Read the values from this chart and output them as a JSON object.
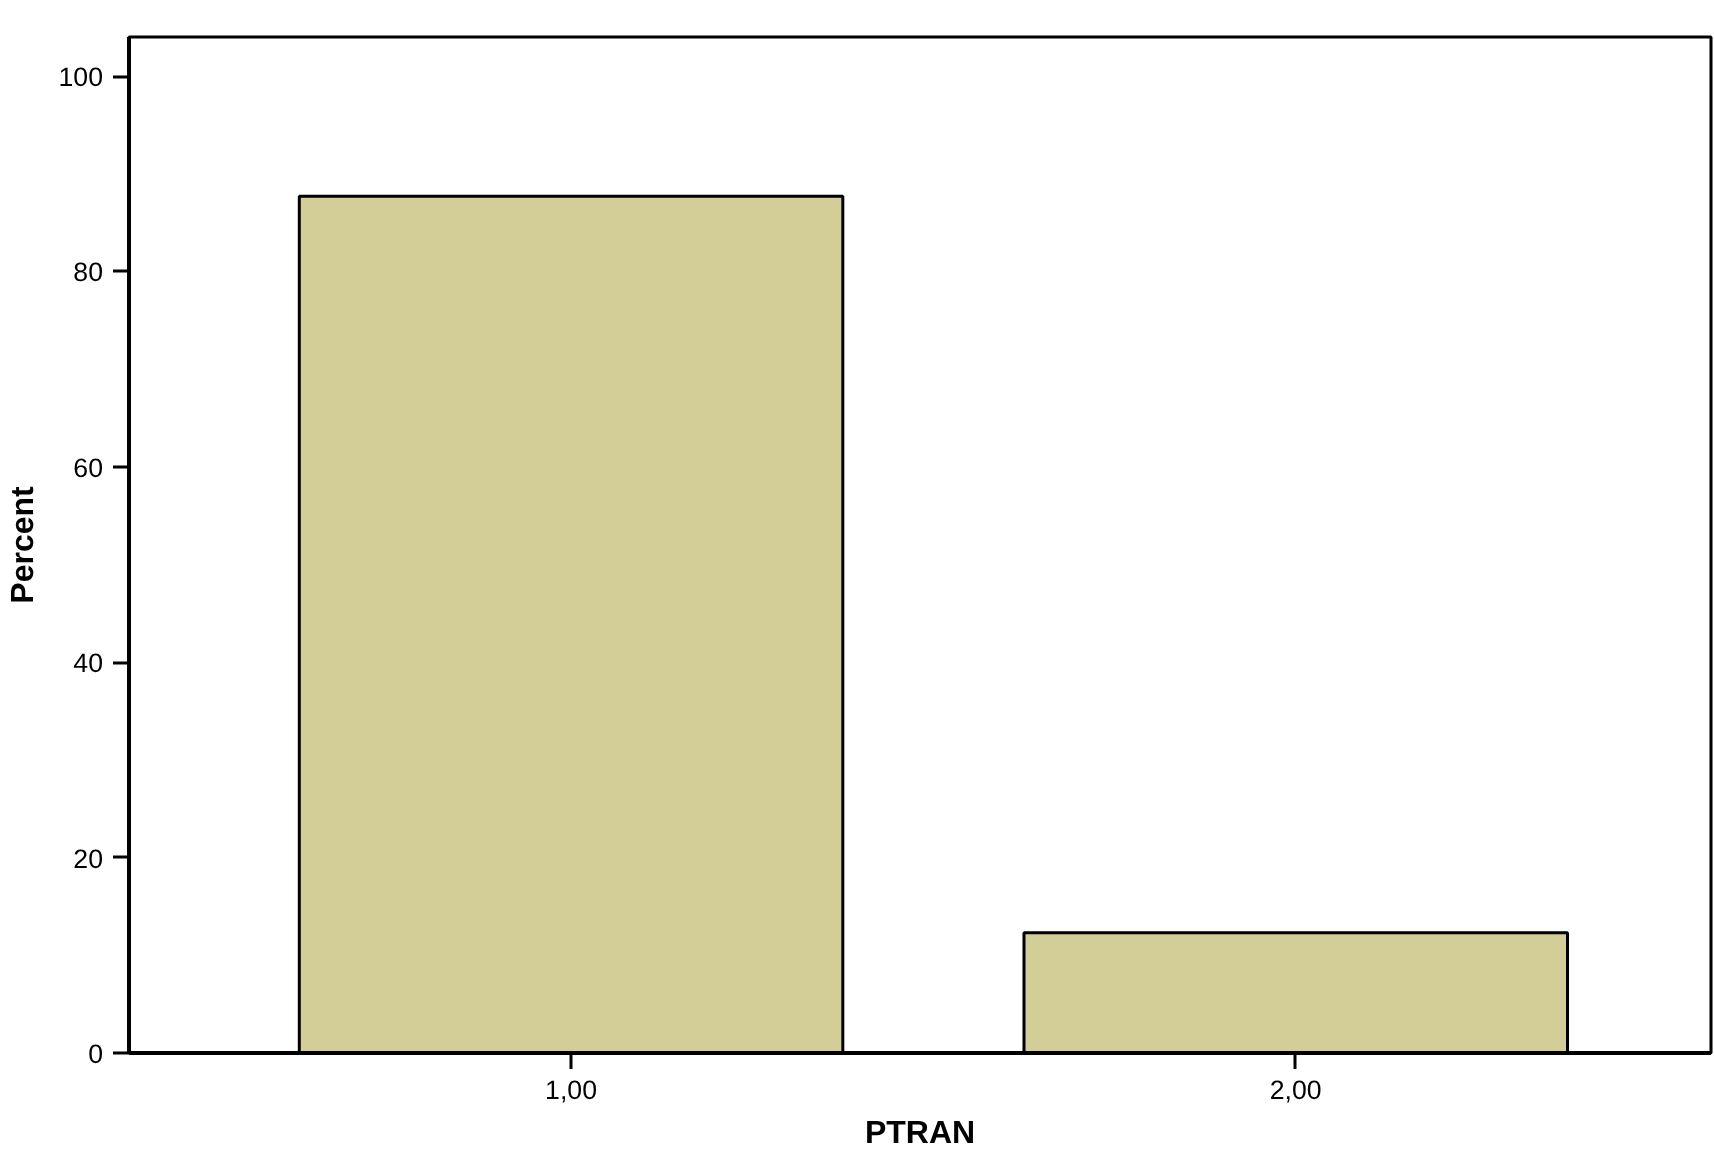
{
  "chart_data": {
    "type": "bar",
    "xlabel": "PTRAN",
    "ylabel": "Percent",
    "categories": [
      "1,00",
      "2,00"
    ],
    "values": [
      87.7,
      12.3
    ],
    "color": "#d3ce98",
    "ylim": [
      0,
      104
    ],
    "yticks": [
      0,
      20,
      40,
      60,
      80,
      100
    ],
    "grid": false
  }
}
